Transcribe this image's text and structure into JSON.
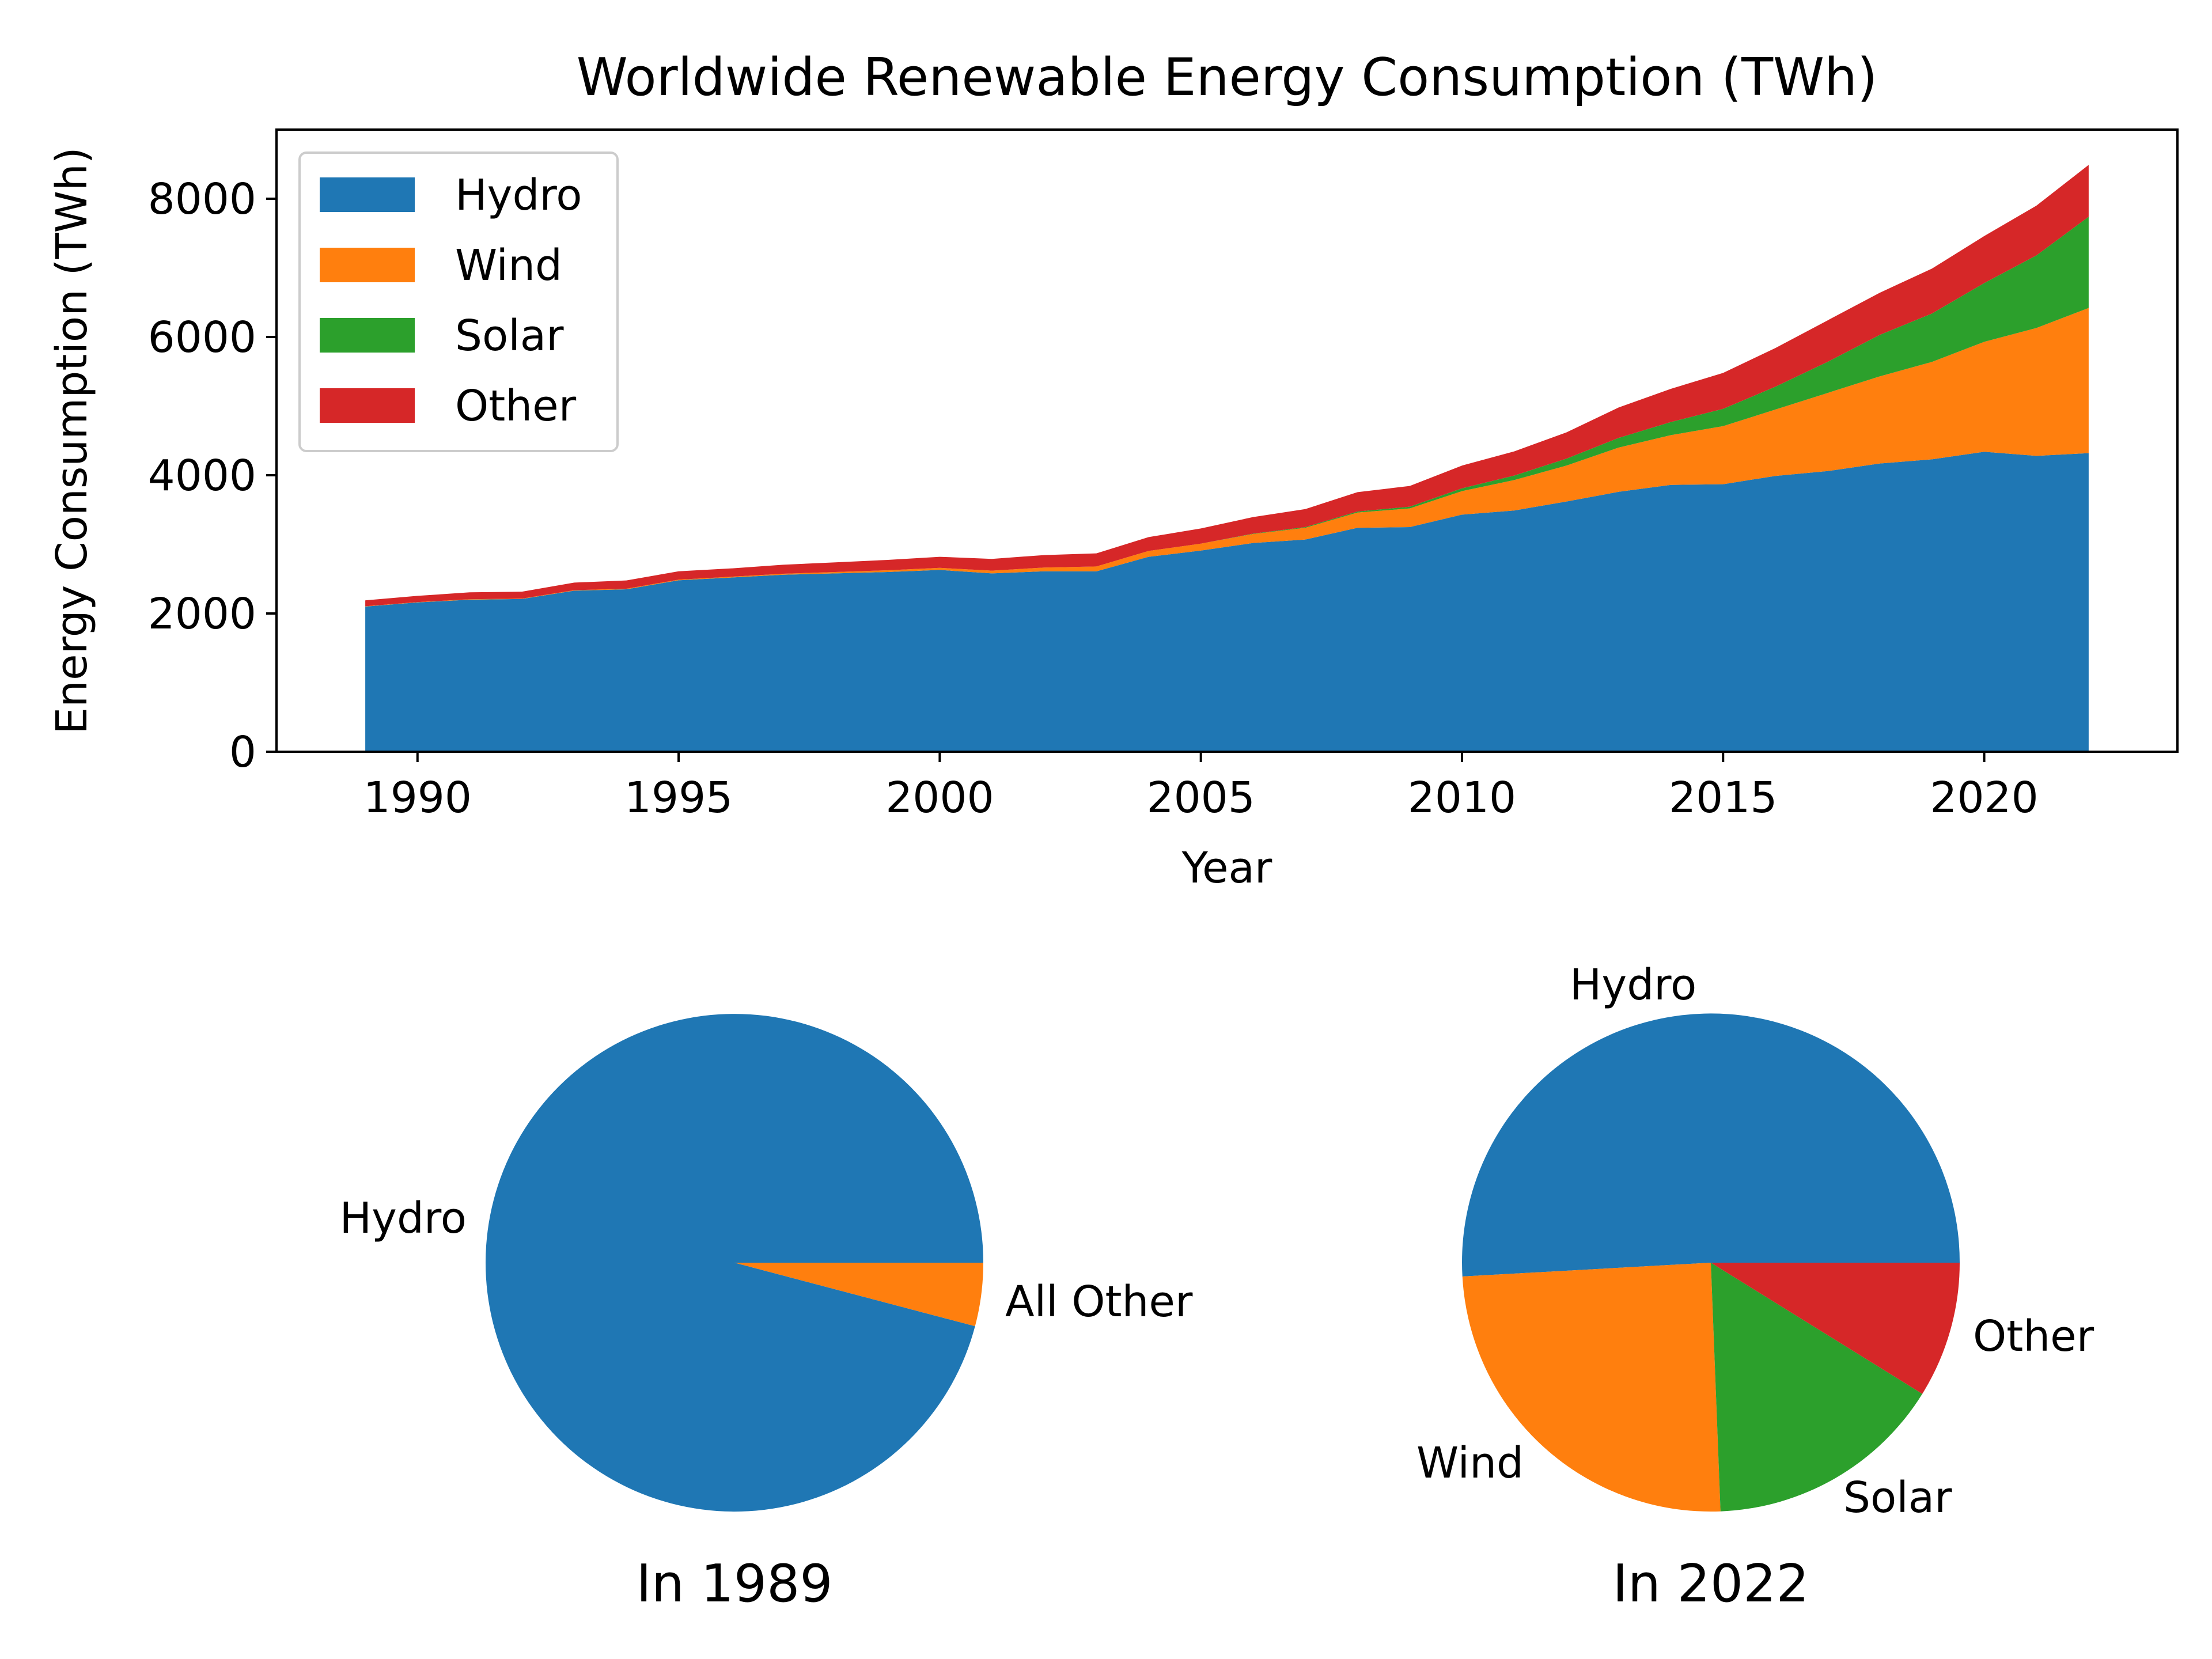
{
  "chart_data": [
    {
      "type": "area",
      "stacked": true,
      "title": "Worldwide Renewable Energy Consumption (TWh)",
      "xlabel": "Year",
      "ylabel": "Energy Consumption (TWh)",
      "xlim": [
        1987.3,
        2023.7
      ],
      "ylim": [
        0,
        9000
      ],
      "xticks": [
        1990,
        1995,
        2000,
        2005,
        2010,
        2015,
        2020
      ],
      "xtick_labels": [
        "1990",
        "1995",
        "2000",
        "2005",
        "2010",
        "2015",
        "2020"
      ],
      "yticks": [
        0,
        2000,
        4000,
        6000,
        8000
      ],
      "ytick_labels": [
        "0",
        "2000",
        "4000",
        "6000",
        "8000"
      ],
      "grid": false,
      "legend_position": "upper-left",
      "x": [
        1989,
        1990,
        1991,
        1992,
        1993,
        1994,
        1995,
        1996,
        1997,
        1998,
        1999,
        2000,
        2001,
        2002,
        2003,
        2004,
        2005,
        2006,
        2007,
        2008,
        2009,
        2010,
        2011,
        2012,
        2013,
        2014,
        2015,
        2016,
        2017,
        2018,
        2019,
        2020,
        2021,
        2022
      ],
      "series": [
        {
          "name": "Hydro",
          "color": "#1f77b4",
          "values": [
            2100,
            2160,
            2200,
            2210,
            2330,
            2350,
            2480,
            2520,
            2560,
            2580,
            2600,
            2630,
            2580,
            2610,
            2610,
            2820,
            2910,
            3020,
            3070,
            3240,
            3250,
            3430,
            3490,
            3620,
            3760,
            3860,
            3870,
            3990,
            4060,
            4170,
            4230,
            4340,
            4280,
            4320
          ]
        },
        {
          "name": "Wind",
          "color": "#ff7f0e",
          "values": [
            5,
            5,
            6,
            6,
            7,
            8,
            10,
            12,
            15,
            20,
            25,
            30,
            40,
            55,
            70,
            85,
            100,
            130,
            170,
            220,
            270,
            340,
            440,
            520,
            640,
            720,
            840,
            960,
            1130,
            1260,
            1410,
            1590,
            1850,
            2100
          ]
        },
        {
          "name": "Solar",
          "color": "#2ca02c",
          "values": [
            0,
            0,
            0,
            0,
            0,
            0,
            0,
            0,
            0,
            0,
            0,
            0,
            0,
            0,
            0,
            0,
            0,
            5,
            10,
            15,
            25,
            40,
            65,
            100,
            140,
            190,
            250,
            330,
            450,
            600,
            700,
            850,
            1050,
            1320
          ]
        },
        {
          "name": "Other",
          "color": "#d62728",
          "values": [
            85,
            90,
            100,
            100,
            110,
            120,
            120,
            120,
            130,
            140,
            150,
            160,
            170,
            180,
            190,
            200,
            220,
            240,
            260,
            280,
            300,
            330,
            350,
            380,
            440,
            480,
            520,
            560,
            600,
            610,
            650,
            680,
            720,
            750
          ]
        }
      ]
    },
    {
      "type": "pie",
      "title": "In 1989",
      "labels": [
        "Hydro",
        "All Other"
      ],
      "values": [
        2100,
        90
      ],
      "colors": [
        "#1f77b4",
        "#ff7f0e"
      ]
    },
    {
      "type": "pie",
      "title": "In 2022",
      "labels": [
        "Hydro",
        "Wind",
        "Solar",
        "Other"
      ],
      "values": [
        4320,
        2100,
        1320,
        750
      ],
      "colors": [
        "#1f77b4",
        "#ff7f0e",
        "#2ca02c",
        "#d62728"
      ]
    }
  ]
}
